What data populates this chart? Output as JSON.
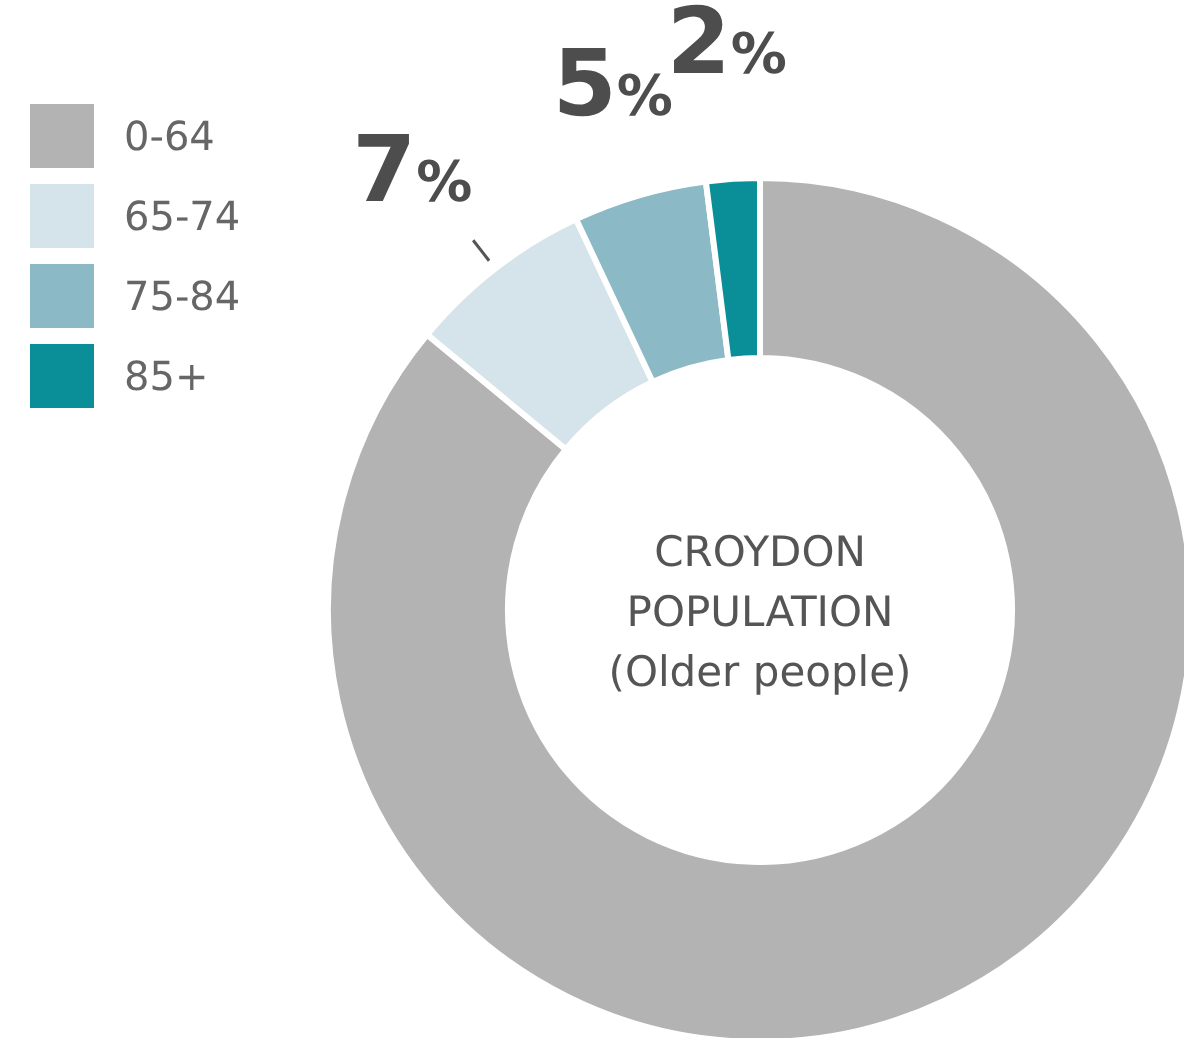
{
  "chart_data": {
    "type": "donut",
    "title": "CROYDON POPULATION",
    "subtitle": "(Older people)",
    "categories": [
      "0-64",
      "65-74",
      "75-84",
      "85+"
    ],
    "values": [
      86,
      7,
      5,
      2
    ],
    "colors": [
      "#b3b3b3",
      "#d5e4ea",
      "#8bbac6",
      "#0a8f98"
    ],
    "value_labels": [
      null,
      "7%",
      "5%",
      "2%"
    ],
    "legend": "top left"
  }
}
